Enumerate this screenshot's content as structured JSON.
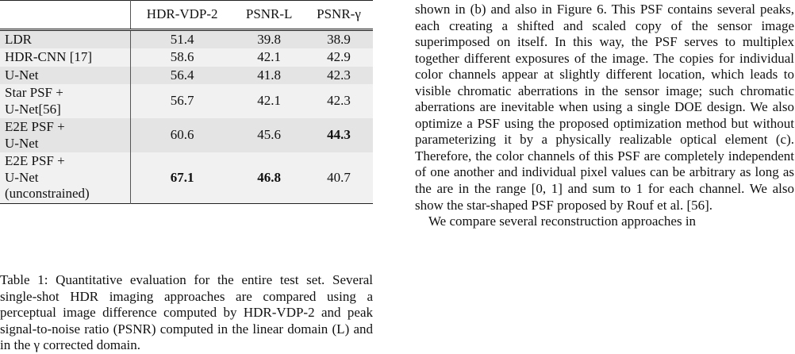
{
  "table": {
    "header": [
      "",
      "HDR-VDP-2",
      "PSNR-L",
      "PSNR-γ"
    ],
    "rows": [
      [
        "LDR",
        "51.4",
        "39.8",
        "38.9"
      ],
      [
        "HDR-CNN [17]",
        "58.6",
        "42.1",
        "42.9"
      ],
      [
        "U-Net",
        "56.4",
        "41.8",
        "42.3"
      ],
      [
        "Star PSF +\nU-Net[56]",
        "56.7",
        "42.1",
        "42.3"
      ],
      [
        "E2E PSF +\nU-Net",
        "60.6",
        "45.6",
        "44.3"
      ],
      [
        "E2E PSF +\nU-Net\n(unconstrained)",
        "67.1",
        "46.8",
        "40.7"
      ]
    ]
  },
  "caption": "Table 1: Quantitative evaluation for the entire test set. Several single-shot HDR imaging approaches are compared using a perceptual image difference computed by HDR-VDP-2 and peak signal-to-noise ratio (PSNR) computed in the linear domain (L) and in the γ corrected domain.",
  "body": [
    "shown in (b) and also in Figure 6. This PSF contains several peaks, each creating a shifted and scaled copy of the sensor image superimposed on itself. In this way, the PSF serves to multiplex together different exposures of the image. The copies for individual color channels appear at slightly different location, which leads to visible chromatic aberrations in the sensor image; such chromatic aberrations are inevitable when using a single DOE design. We also optimize a PSF using the proposed optimization method but without parameterizing it by a physically realizable optical element (c). Therefore, the color channels of this PSF are completely independent of one another and individual pixel values can be arbitrary as long as the are in the range [0, 1] and sum to 1 for each channel. We also show the star-shaped PSF proposed by Rouf et al. [56].",
    "We compare several reconstruction approaches in"
  ]
}
